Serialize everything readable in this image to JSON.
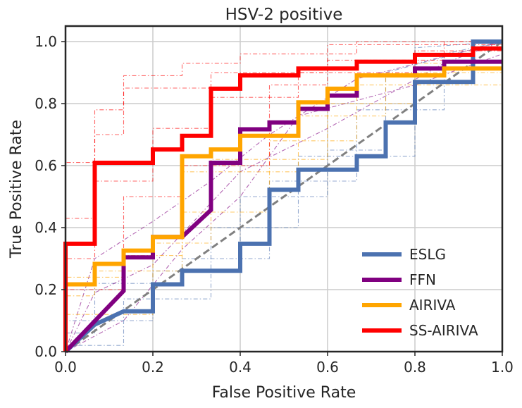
{
  "chart_data": {
    "type": "line",
    "title": "HSV-2 positive",
    "xlabel": "False Positive Rate",
    "ylabel": "True Positive Rate",
    "xlim": [
      0,
      1
    ],
    "ylim": [
      0,
      1.05
    ],
    "xticks": [
      0.0,
      0.2,
      0.4,
      0.6,
      0.8,
      1.0
    ],
    "yticks": [
      0.0,
      0.2,
      0.4,
      0.6,
      0.8,
      1.0
    ],
    "xtick_labels": [
      "0.0",
      "0.2",
      "0.4",
      "0.6",
      "0.8",
      "1.0"
    ],
    "ytick_labels": [
      "0.0",
      "0.2",
      "0.4",
      "0.6",
      "0.8",
      "1.0"
    ],
    "grid": true,
    "legend_position": "lower-right",
    "diagonal": {
      "x": [
        0,
        1
      ],
      "y": [
        0,
        1
      ],
      "color": "#808080",
      "style": "dashed"
    },
    "series": [
      {
        "name": "ESLG",
        "color": "#4c72b0",
        "x": [
          0,
          0,
          0.067,
          0.067,
          0.133,
          0.133,
          0.2,
          0.2,
          0.267,
          0.267,
          0.4,
          0.4,
          0.467,
          0.467,
          0.533,
          0.533,
          0.667,
          0.667,
          0.733,
          0.733,
          0.8,
          0.8,
          0.933,
          0.933,
          1.0
        ],
        "y": [
          0,
          0,
          0.087,
          0.087,
          0.13,
          0.13,
          0.13,
          0.217,
          0.217,
          0.261,
          0.261,
          0.348,
          0.348,
          0.522,
          0.522,
          0.587,
          0.587,
          0.63,
          0.63,
          0.739,
          0.739,
          0.87,
          0.87,
          1.0,
          1.0
        ]
      },
      {
        "name": "FFN",
        "color": "#800080",
        "x": [
          0,
          0.133,
          0.133,
          0.2,
          0.2,
          0.267,
          0.267,
          0.333,
          0.333,
          0.4,
          0.4,
          0.467,
          0.467,
          0.533,
          0.533,
          0.6,
          0.6,
          0.667,
          0.667,
          0.8,
          0.8,
          0.867,
          0.867,
          1.0
        ],
        "y": [
          0,
          0.196,
          0.304,
          0.304,
          0.37,
          0.37,
          0.37,
          0.457,
          0.609,
          0.609,
          0.717,
          0.717,
          0.739,
          0.739,
          0.783,
          0.783,
          0.826,
          0.826,
          0.891,
          0.891,
          0.913,
          0.913,
          0.935,
          0.935
        ]
      },
      {
        "name": "AIRIVA",
        "color": "#ffa500",
        "x": [
          0,
          0,
          0.067,
          0.067,
          0.133,
          0.133,
          0.2,
          0.2,
          0.267,
          0.267,
          0.333,
          0.333,
          0.4,
          0.4,
          0.533,
          0.533,
          0.6,
          0.6,
          0.667,
          0.667,
          0.867,
          0.867,
          1.0
        ],
        "y": [
          0,
          0.217,
          0.217,
          0.283,
          0.283,
          0.326,
          0.326,
          0.37,
          0.37,
          0.63,
          0.63,
          0.652,
          0.652,
          0.696,
          0.696,
          0.804,
          0.804,
          0.848,
          0.848,
          0.891,
          0.891,
          0.913,
          0.913
        ]
      },
      {
        "name": "SS-AIRIVA",
        "color": "#ff0000",
        "x": [
          0,
          0,
          0.067,
          0.067,
          0.2,
          0.2,
          0.267,
          0.267,
          0.333,
          0.333,
          0.4,
          0.4,
          0.533,
          0.533,
          0.667,
          0.667,
          0.8,
          0.8,
          0.933,
          0.933,
          1.0
        ],
        "y": [
          0,
          0.348,
          0.348,
          0.609,
          0.609,
          0.652,
          0.652,
          0.696,
          0.696,
          0.848,
          0.848,
          0.891,
          0.891,
          0.913,
          0.913,
          0.935,
          0.935,
          0.957,
          0.957,
          0.978,
          0.978
        ]
      }
    ],
    "fold_curves_note": "",
    "fold_curves": [
      {
        "series": "ESLG",
        "x": [
          0,
          0,
          0.133,
          0.133,
          0.333,
          0.333,
          0.533,
          0.533,
          0.8,
          0.8,
          1.0
        ],
        "y": [
          0,
          0.02,
          0.02,
          0.17,
          0.17,
          0.4,
          0.4,
          0.63,
          0.63,
          0.98,
          1.0
        ]
      },
      {
        "series": "ESLG",
        "x": [
          0,
          0,
          0.2,
          0.2,
          0.4,
          0.4,
          0.6,
          0.6,
          0.733,
          0.733,
          1.0
        ],
        "y": [
          0,
          0.1,
          0.1,
          0.26,
          0.26,
          0.5,
          0.5,
          0.65,
          0.65,
          0.9,
          1.0
        ]
      },
      {
        "series": "ESLG",
        "x": [
          0,
          0,
          0.067,
          0.067,
          0.267,
          0.267,
          0.467,
          0.467,
          0.667,
          0.667,
          0.867,
          0.867,
          1.0
        ],
        "y": [
          0,
          0.06,
          0.06,
          0.22,
          0.22,
          0.3,
          0.3,
          0.55,
          0.55,
          0.78,
          0.78,
          0.96,
          1.0
        ]
      },
      {
        "series": "FFN",
        "x": [
          0,
          0.067,
          0.067,
          0.2,
          0.2,
          0.333,
          0.333,
          0.467,
          0.467,
          0.667,
          0.667,
          1.0
        ],
        "y": [
          0,
          0.3,
          0.3,
          0.42,
          0.42,
          0.55,
          0.55,
          0.7,
          0.7,
          0.88,
          0.88,
          1.0
        ]
      },
      {
        "series": "FFN",
        "x": [
          0,
          0.133,
          0.133,
          0.267,
          0.267,
          0.4,
          0.4,
          0.533,
          0.533,
          0.8,
          0.8,
          1.0
        ],
        "y": [
          0,
          0.1,
          0.1,
          0.33,
          0.33,
          0.5,
          0.5,
          0.76,
          0.76,
          0.86,
          0.86,
          0.96
        ]
      },
      {
        "series": "FFN",
        "x": [
          0,
          0.067,
          0.067,
          0.2,
          0.2,
          0.4,
          0.4,
          0.6,
          0.6,
          0.867,
          0.867,
          1.0
        ],
        "y": [
          0,
          0.19,
          0.19,
          0.28,
          0.28,
          0.58,
          0.58,
          0.72,
          0.72,
          0.93,
          0.93,
          1.0
        ]
      },
      {
        "series": "AIRIVA",
        "x": [
          0,
          0,
          0.067,
          0.067,
          0.267,
          0.267,
          0.467,
          0.467,
          0.667,
          0.667,
          1.0
        ],
        "y": [
          0,
          0.18,
          0.18,
          0.26,
          0.26,
          0.45,
          0.45,
          0.68,
          0.68,
          0.86,
          0.86
        ]
      },
      {
        "series": "AIRIVA",
        "x": [
          0,
          0,
          0.133,
          0.133,
          0.267,
          0.267,
          0.533,
          0.533,
          0.733,
          0.733,
          1.0
        ],
        "y": [
          0,
          0.24,
          0.24,
          0.31,
          0.31,
          0.58,
          0.58,
          0.76,
          0.76,
          0.9,
          0.9
        ]
      },
      {
        "series": "AIRIVA",
        "x": [
          0,
          0,
          0.2,
          0.2,
          0.333,
          0.333,
          0.6,
          0.6,
          0.8,
          0.8,
          1.0
        ],
        "y": [
          0,
          0.12,
          0.12,
          0.35,
          0.35,
          0.62,
          0.62,
          0.8,
          0.8,
          0.93,
          0.93
        ]
      },
      {
        "series": "SS-AIRIVA",
        "x": [
          0,
          0,
          0.067,
          0.067,
          0.133,
          0.133,
          0.267,
          0.267,
          0.4,
          0.4,
          0.667,
          0.667,
          1.0
        ],
        "y": [
          0,
          0.43,
          0.43,
          0.78,
          0.78,
          0.89,
          0.89,
          0.93,
          0.93,
          0.96,
          0.96,
          1.0,
          1.0
        ]
      },
      {
        "series": "SS-AIRIVA",
        "x": [
          0,
          0,
          0.067,
          0.067,
          0.2,
          0.2,
          0.333,
          0.333,
          0.533,
          0.533,
          0.8,
          0.8,
          1.0
        ],
        "y": [
          0,
          0.3,
          0.3,
          0.55,
          0.55,
          0.72,
          0.72,
          0.82,
          0.82,
          0.9,
          0.9,
          0.97,
          0.97
        ]
      },
      {
        "series": "SS-AIRIVA",
        "x": [
          0,
          0,
          0.133,
          0.133,
          0.267,
          0.267,
          0.467,
          0.467,
          0.6,
          0.6,
          0.867,
          0.867,
          1.0
        ],
        "y": [
          0,
          0.2,
          0.2,
          0.5,
          0.5,
          0.6,
          0.6,
          0.86,
          0.86,
          0.94,
          0.94,
          1.0,
          1.0
        ]
      },
      {
        "series": "SS-AIRIVA",
        "x": [
          0,
          0,
          0.067,
          0.067,
          0.133,
          0.133,
          0.333,
          0.333,
          0.6,
          0.6,
          1.0
        ],
        "y": [
          0,
          0.61,
          0.61,
          0.7,
          0.7,
          0.85,
          0.85,
          0.9,
          0.9,
          0.99,
          0.99
        ]
      }
    ]
  }
}
